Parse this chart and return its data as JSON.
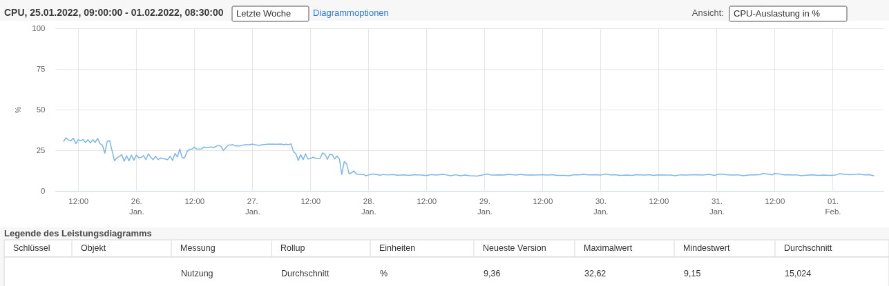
{
  "chart_data": {
    "type": "line",
    "title": "CPU, 25.01.2022, 09:00:00 - 01.02.2022, 08:30:00",
    "ylabel": "%",
    "annotations": [
      "Letzte Woche",
      "Diagrammoptionen",
      "Ansicht:",
      "CPU-Auslastung in %",
      "Legende des Leistungsdiagramms",
      "Schlüssel",
      "Objekt",
      "Messung",
      "Rollup",
      "Einheiten",
      "Neueste Version",
      "Maximalwert",
      "Mindestwert",
      "Durchschnitt",
      "Nutzung",
      "Durchschnitt",
      "%",
      "9,36",
      "32,62",
      "9,15",
      "15,024"
    ],
    "x": [
      "2022-01-25T09:00",
      "2022-01-25T09:30",
      "2022-01-25T10:00",
      "2022-01-25T10:30",
      "2022-01-25T11:00",
      "2022-01-25T11:30",
      "2022-01-25T12:00",
      "2022-01-25T12:30",
      "2022-01-25T13:00",
      "2022-01-25T13:30",
      "2022-01-25T14:00",
      "2022-01-25T14:30",
      "2022-01-25T15:00",
      "2022-01-25T15:30",
      "2022-01-25T16:00",
      "2022-01-25T16:30",
      "2022-01-25T17:00",
      "2022-01-25T17:30",
      "2022-01-25T18:00",
      "2022-01-25T18:30",
      "2022-01-25T19:30",
      "2022-01-25T20:00",
      "2022-01-25T21:00",
      "2022-01-25T21:30",
      "2022-01-25T22:00",
      "2022-01-25T22:30",
      "2022-01-25T23:00",
      "2022-01-25T23:30",
      "2022-01-26T00:00",
      "2022-01-26T00:30",
      "2022-01-26T01:00",
      "2022-01-26T01:30",
      "2022-01-26T02:00",
      "2022-01-26T02:30",
      "2022-01-26T03:00",
      "2022-01-26T03:30",
      "2022-01-26T04:00",
      "2022-01-26T04:30",
      "2022-01-26T05:00",
      "2022-01-26T05:30",
      "2022-01-26T06:30",
      "2022-01-26T07:00",
      "2022-01-26T07:30",
      "2022-01-26T08:00",
      "2022-01-26T08:30",
      "2022-01-26T09:00",
      "2022-01-26T09:30",
      "2022-01-26T10:00",
      "2022-01-26T10:30",
      "2022-01-26T11:00",
      "2022-01-26T11:30",
      "2022-01-26T12:00",
      "2022-01-26T12:30",
      "2022-01-26T13:30",
      "2022-01-26T14:00",
      "2022-01-26T14:30",
      "2022-01-26T15:30",
      "2022-01-26T16:00",
      "2022-01-26T16:30",
      "2022-01-26T17:00",
      "2022-01-26T17:30",
      "2022-01-26T18:00",
      "2022-01-26T19:00",
      "2022-01-26T20:00",
      "2022-01-26T20:30",
      "2022-01-26T21:30",
      "2022-01-26T22:30",
      "2022-01-26T23:30",
      "2022-01-27T00:00",
      "2022-01-27T00:30",
      "2022-01-27T01:30",
      "2022-01-27T02:00",
      "2022-01-27T03:30",
      "2022-01-27T05:00",
      "2022-01-27T06:00",
      "2022-01-27T06:30",
      "2022-01-27T07:00",
      "2022-01-27T07:30",
      "2022-01-27T08:00",
      "2022-01-27T08:30",
      "2022-01-27T09:00",
      "2022-01-27T09:30",
      "2022-01-27T10:00",
      "2022-01-27T10:30",
      "2022-01-27T11:00",
      "2022-01-27T11:30",
      "2022-01-27T12:00",
      "2022-01-27T12:30",
      "2022-01-27T13:00",
      "2022-01-27T13:30",
      "2022-01-27T14:00",
      "2022-01-27T14:30",
      "2022-01-27T15:00",
      "2022-01-27T15:30",
      "2022-01-27T16:00",
      "2022-01-27T16:30",
      "2022-01-27T17:00",
      "2022-01-27T17:30",
      "2022-01-27T18:00",
      "2022-01-27T18:30",
      "2022-01-27T19:00",
      "2022-01-27T19:30",
      "2022-01-27T20:00",
      "2022-01-27T20:30",
      "2022-01-27T21:00",
      "2022-01-27T21:30",
      "2022-01-27T22:30",
      "2022-01-27T23:00",
      "2022-01-27T23:30",
      "2022-01-28T00:00",
      "2022-01-28T01:00",
      "2022-01-28T02:30",
      "2022-01-28T03:00",
      "2022-01-28T04:00",
      "2022-01-28T05:00",
      "2022-01-28T06:00",
      "2022-01-28T07:30",
      "2022-01-28T08:30",
      "2022-01-28T09:30",
      "2022-01-28T11:00",
      "2022-01-28T12:00",
      "2022-01-28T13:00",
      "2022-01-28T14:00",
      "2022-01-28T15:30",
      "2022-01-28T16:00",
      "2022-01-28T17:00",
      "2022-01-28T18:00",
      "2022-01-28T19:00",
      "2022-01-28T20:00",
      "2022-01-28T21:00",
      "2022-01-28T22:30",
      "2022-01-28T23:30",
      "2022-01-29T00:30",
      "2022-01-29T01:30",
      "2022-01-29T03:00",
      "2022-01-29T04:00",
      "2022-01-29T05:00",
      "2022-01-29T06:30",
      "2022-01-29T07:30",
      "2022-01-29T08:30",
      "2022-01-29T09:30",
      "2022-01-29T10:30",
      "2022-01-29T12:00",
      "2022-01-29T13:00",
      "2022-01-29T14:00",
      "2022-01-29T15:00",
      "2022-01-29T16:30",
      "2022-01-29T17:30",
      "2022-01-29T18:30",
      "2022-01-29T19:30",
      "2022-01-29T20:30",
      "2022-01-29T21:30",
      "2022-01-29T23:00",
      "2022-01-30T00:00",
      "2022-01-30T01:00",
      "2022-01-30T02:00",
      "2022-01-30T03:00",
      "2022-01-30T04:00",
      "2022-01-30T05:30",
      "2022-01-30T06:30",
      "2022-01-30T07:30",
      "2022-01-30T09:00",
      "2022-01-30T10:00",
      "2022-01-30T11:00",
      "2022-01-30T12:00",
      "2022-01-30T13:30",
      "2022-01-30T14:30",
      "2022-01-30T15:30",
      "2022-01-30T16:30",
      "2022-01-30T17:30",
      "2022-01-30T18:30",
      "2022-01-30T20:00",
      "2022-01-30T21:00",
      "2022-01-30T22:30",
      "2022-01-30T23:30",
      "2022-01-31T00:30",
      "2022-01-31T02:00",
      "2022-01-31T03:00",
      "2022-01-31T04:30",
      "2022-01-31T05:30",
      "2022-01-31T06:30",
      "2022-01-31T08:00",
      "2022-01-31T09:00",
      "2022-01-31T09:30",
      "2022-01-31T10:30",
      "2022-01-31T11:30",
      "2022-01-31T12:00",
      "2022-01-31T13:00",
      "2022-01-31T14:00",
      "2022-01-31T15:00",
      "2022-01-31T15:30",
      "2022-01-31T16:30",
      "2022-01-31T17:30",
      "2022-01-31T19:00",
      "2022-01-31T20:00",
      "2022-01-31T21:00",
      "2022-01-31T22:00",
      "2022-01-31T23:30",
      "2022-02-01T00:30",
      "2022-02-01T01:30",
      "2022-02-01T02:30",
      "2022-02-01T03:30",
      "2022-02-01T04:30",
      "2022-02-01T05:30",
      "2022-02-01T06:30",
      "2022-02-01T07:30",
      "2022-02-01T08:30"
    ],
    "series": [
      {
        "color": "#7cb5ec",
        "values": [
          30.5,
          32.62,
          31.2,
          30.9,
          32.4,
          29.1,
          31.5,
          30.8,
          31.6,
          29.8,
          31.5,
          29.5,
          31.5,
          29.8,
          32.3,
          29.1,
          28.1,
          23.2,
          30.5,
          30.9,
          18.5,
          20.2,
          22.3,
          18.2,
          21.6,
          18.5,
          22.0,
          18.9,
          22.0,
          20.3,
          20.6,
          21.7,
          19.2,
          22.8,
          20.6,
          19.2,
          21.3,
          19.2,
          20.2,
          19.9,
          19.2,
          21.3,
          18.8,
          23.0,
          20.9,
          25.8,
          20.3,
          20.3,
          24.2,
          25.6,
          25.6,
          27.0,
          25.6,
          25.8,
          27.0,
          26.6,
          27.0,
          26.6,
          27.4,
          28.0,
          27.4,
          24.9,
          28.1,
          28.4,
          27.7,
          27.7,
          28.4,
          28.4,
          28.8,
          28.4,
          28.0,
          28.4,
          28.8,
          28.7,
          28.8,
          28.4,
          28.7,
          28.4,
          28.9,
          24.2,
          22.8,
          18.8,
          22.3,
          19.2,
          22.8,
          19.6,
          19.9,
          20.7,
          20.2,
          19.9,
          19.9,
          23.3,
          22.6,
          19.4,
          22.5,
          22.4,
          19.6,
          21.4,
          19.6,
          10.1,
          18.1,
          16.6,
          10.6,
          11.1,
          12.3,
          10.4,
          10.1,
          10.1,
          9.3,
          9.8,
          10.4,
          9.6,
          10.1,
          9.8,
          10.1,
          9.6,
          9.9,
          9.5,
          10.0,
          9.7,
          9.4,
          10.1,
          9.7,
          10.2,
          9.9,
          9.3,
          9.9,
          9.3,
          9.7,
          9.3,
          9.15,
          9.7,
          10.4,
          9.7,
          9.9,
          9.7,
          10.2,
          9.7,
          10.2,
          9.7,
          9.9,
          9.7,
          10.0,
          9.7,
          10.0,
          9.5,
          9.5,
          9.3,
          10.0,
          9.9,
          10.2,
          9.9,
          10.0,
          9.7,
          10.4,
          9.9,
          10.0,
          9.5,
          9.7,
          9.5,
          10.0,
          9.7,
          10.0,
          9.5,
          9.9,
          9.7,
          9.7,
          9.3,
          9.9,
          9.7,
          9.9,
          10.0,
          9.7,
          10.2,
          9.5,
          10.4,
          10.0,
          9.7,
          9.9,
          9.3,
          9.7,
          9.9,
          10.0,
          10.7,
          10.4,
          9.9,
          10.7,
          10.4,
          9.9,
          10.0,
          9.7,
          9.9,
          9.3,
          9.7,
          9.9,
          9.5,
          9.7,
          9.5,
          9.7,
          10.6,
          10.2,
          10.0,
          10.2,
          10.4,
          9.9,
          10.0,
          9.36
        ]
      }
    ],
    "xlim": [
      "2022-01-25T07:15",
      "2022-02-01T10:30"
    ],
    "xticks": [
      {
        "value": "2022-01-25T12:00",
        "label": "12:00"
      },
      {
        "value": "2022-01-26",
        "label": "26.\nJan."
      },
      {
        "value": "2022-01-26T12:00",
        "label": "12:00"
      },
      {
        "value": "2022-01-27",
        "label": "27.\nJan."
      },
      {
        "value": "2022-01-27T12:00",
        "label": "12:00"
      },
      {
        "value": "2022-01-28",
        "label": "28.\nJan."
      },
      {
        "value": "2022-01-28T12:00",
        "label": "12:00"
      },
      {
        "value": "2022-01-29",
        "label": "29.\nJan."
      },
      {
        "value": "2022-01-29T12:00",
        "label": "12:00"
      },
      {
        "value": "2022-01-30",
        "label": "30.\nJan."
      },
      {
        "value": "2022-01-30T12:00",
        "label": "12:00"
      },
      {
        "value": "2022-01-31",
        "label": "31.\nJan."
      },
      {
        "value": "2022-01-31T12:00",
        "label": "12:00"
      },
      {
        "value": "2022-02-01",
        "label": "01.\nFeb."
      }
    ],
    "ylim": [
      0,
      100
    ],
    "yticks": [
      0,
      25,
      50,
      75,
      100
    ],
    "grid": true
  }
}
